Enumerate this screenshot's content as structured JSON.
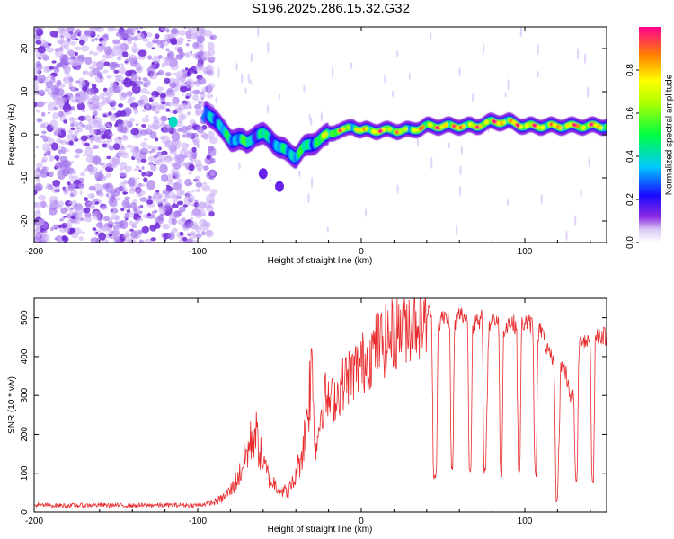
{
  "title": "S196.2025.286.15.32.G32",
  "chart_data": [
    {
      "type": "heatmap",
      "xlabel": "Height of straight line (km)",
      "ylabel": "Frequency (Hz)",
      "xlim": [
        -200,
        150
      ],
      "ylim": [
        -25,
        25
      ],
      "xticks": [
        -200,
        -100,
        0,
        100
      ],
      "xtick_labels": [
        "-200",
        "-100",
        "0",
        "100"
      ],
      "yticks": [
        -20,
        -10,
        0,
        10,
        20
      ],
      "ytick_labels": [
        "-20",
        "-10",
        "0",
        "10",
        "20"
      ],
      "colorbar": {
        "label": "Normalized spectral amplitude",
        "range": [
          0,
          1
        ],
        "ticks": [
          0.0,
          0.2,
          0.4,
          0.6,
          0.8
        ],
        "tick_labels": [
          "0.0",
          "0.2",
          "0.4",
          "0.6",
          "0.8"
        ]
      },
      "ridge": {
        "x": [
          -95,
          -90,
          -85,
          -80,
          -75,
          -70,
          -65,
          -60,
          -55,
          -50,
          -45,
          -40,
          -35,
          -30,
          -25,
          -20,
          -15,
          -10,
          -5,
          0,
          10,
          20,
          30,
          40,
          50,
          60,
          70,
          80,
          90,
          100,
          110,
          120,
          130,
          140,
          150
        ],
        "freq": [
          5,
          4,
          1,
          -1,
          -1,
          -2,
          0,
          0,
          -1,
          -3,
          -4,
          -5,
          -3,
          -2,
          -1,
          0,
          1,
          1,
          2,
          1,
          1,
          1,
          1,
          2,
          2,
          2,
          2,
          3,
          3,
          2,
          2,
          2,
          2,
          2,
          2
        ],
        "amplitude": [
          0.3,
          0.5,
          0.4,
          0.5,
          0.45,
          0.6,
          0.35,
          0.5,
          0.4,
          0.45,
          0.4,
          0.6,
          0.5,
          0.5,
          0.6,
          0.75,
          0.85,
          0.8,
          0.7,
          0.8,
          0.9,
          0.85,
          0.7,
          0.9,
          0.95,
          0.9,
          0.85,
          0.95,
          0.9,
          0.95,
          0.9,
          0.85,
          0.9,
          0.95,
          0.85
        ]
      },
      "secondary_features": [
        {
          "x": -60,
          "freq": -9,
          "amplitude": 0.15
        },
        {
          "x": -50,
          "freq": -12,
          "amplitude": 0.15
        },
        {
          "x": -115,
          "freq": 3,
          "amplitude": 0.4
        },
        {
          "x": -95,
          "freq": 4,
          "amplitude": 0.3
        }
      ],
      "noise_region": {
        "x_from": -200,
        "x_to": -90,
        "amplitude": 0.1
      }
    },
    {
      "type": "line",
      "xlabel": "Height of straight line (km)",
      "ylabel": "SNR (10 * v/v)",
      "xlim": [
        -200,
        150
      ],
      "ylim": [
        0,
        550
      ],
      "xticks": [
        -200,
        -100,
        0,
        100
      ],
      "xtick_labels": [
        "-200",
        "-100",
        "0",
        "100"
      ],
      "yticks": [
        0,
        100,
        200,
        300,
        400,
        500
      ],
      "ytick_labels": [
        "0",
        "100",
        "200",
        "300",
        "400",
        "500"
      ],
      "color": "#e8292b",
      "series": [
        {
          "name": "SNR",
          "x": [
            -200,
            -180,
            -160,
            -140,
            -120,
            -100,
            -90,
            -85,
            -80,
            -75,
            -70,
            -65,
            -60,
            -55,
            -50,
            -45,
            -40,
            -35,
            -30,
            -28,
            -25,
            -22,
            -20,
            -15,
            -10,
            -5,
            0,
            5,
            10,
            15,
            20,
            25,
            30,
            35,
            40,
            43,
            44,
            45,
            46,
            47,
            50,
            54,
            55,
            56,
            57,
            60,
            65,
            66,
            67,
            68,
            70,
            72,
            74,
            75,
            76,
            78,
            80,
            84,
            85,
            86,
            87,
            90,
            95,
            96,
            97,
            98,
            100,
            105,
            106,
            107,
            108,
            110,
            112,
            115,
            118,
            119,
            120,
            121,
            122,
            125,
            128,
            130,
            131,
            132,
            133,
            135,
            138,
            140,
            141,
            142,
            143,
            145,
            150
          ],
          "y": [
            18,
            17,
            18,
            17,
            18,
            18,
            25,
            35,
            55,
            90,
            150,
            210,
            120,
            80,
            60,
            50,
            90,
            180,
            380,
            150,
            250,
            300,
            280,
            300,
            340,
            360,
            380,
            400,
            430,
            440,
            460,
            480,
            490,
            500,
            510,
            515,
            100,
            90,
            110,
            480,
            500,
            500,
            120,
            100,
            480,
            510,
            500,
            110,
            100,
            480,
            490,
            480,
            500,
            110,
            100,
            480,
            500,
            490,
            110,
            100,
            470,
            490,
            480,
            110,
            100,
            480,
            490,
            480,
            110,
            100,
            460,
            470,
            440,
            400,
            380,
            40,
            30,
            200,
            380,
            360,
            300,
            290,
            80,
            70,
            420,
            450,
            440,
            450,
            80,
            70,
            440,
            460,
            450
          ]
        }
      ]
    }
  ]
}
